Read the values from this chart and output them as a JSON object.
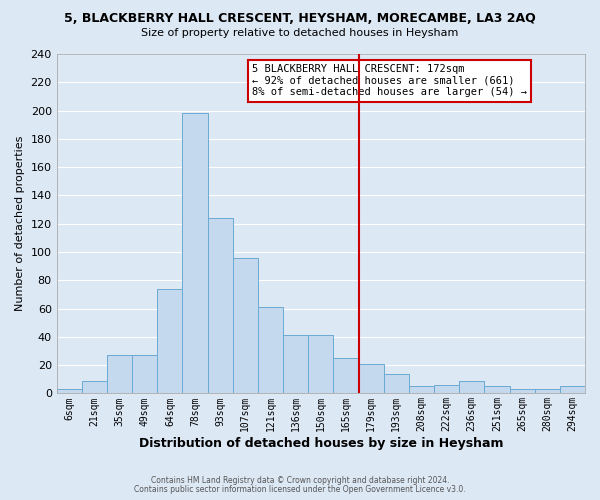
{
  "title": "5, BLACKBERRY HALL CRESCENT, HEYSHAM, MORECAMBE, LA3 2AQ",
  "subtitle": "Size of property relative to detached houses in Heysham",
  "xlabel": "Distribution of detached houses by size in Heysham",
  "ylabel": "Number of detached properties",
  "bar_color": "#c5d9ee",
  "bar_edge_color": "#6aaad4",
  "background_color": "#dde8f5",
  "grid_color": "#ffffff",
  "categories": [
    "6sqm",
    "21sqm",
    "35sqm",
    "49sqm",
    "64sqm",
    "78sqm",
    "93sqm",
    "107sqm",
    "121sqm",
    "136sqm",
    "150sqm",
    "165sqm",
    "179sqm",
    "193sqm",
    "208sqm",
    "222sqm",
    "236sqm",
    "251sqm",
    "265sqm",
    "280sqm",
    "294sqm"
  ],
  "values": [
    3,
    9,
    27,
    27,
    74,
    198,
    124,
    96,
    61,
    41,
    41,
    25,
    21,
    14,
    5,
    6,
    9,
    5,
    3,
    3,
    5
  ],
  "ylim": [
    0,
    240
  ],
  "yticks": [
    0,
    20,
    40,
    60,
    80,
    100,
    120,
    140,
    160,
    180,
    200,
    220,
    240
  ],
  "vline_color": "#cc0000",
  "annotation_title": "5 BLACKBERRY HALL CRESCENT: 172sqm",
  "annotation_line1": "← 92% of detached houses are smaller (661)",
  "annotation_line2": "8% of semi-detached houses are larger (54) →",
  "annotation_box_color": "#ffffff",
  "annotation_box_edge": "#cc0000",
  "footer1": "Contains HM Land Registry data © Crown copyright and database right 2024.",
  "footer2": "Contains public sector information licensed under the Open Government Licence v3.0."
}
